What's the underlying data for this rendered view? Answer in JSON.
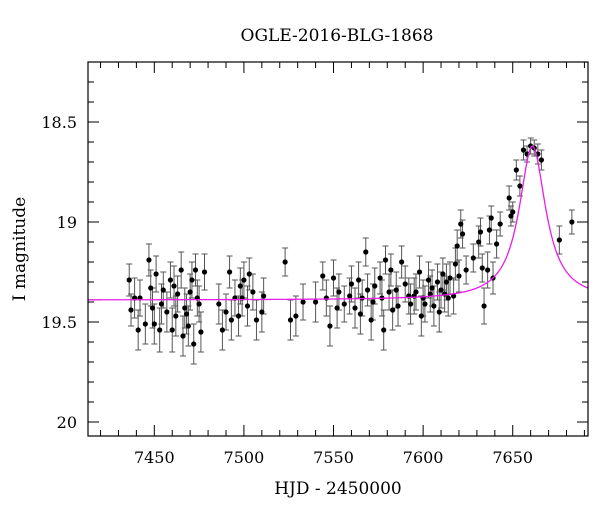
{
  "chart_data": {
    "type": "scatter",
    "title": "OGLE-2016-BLG-1868",
    "xlabel": "HJD - 2450000",
    "ylabel": "I magnitude",
    "xlim": [
      7413,
      7692
    ],
    "ylim": [
      18.2,
      20.07
    ],
    "y_inverted": true,
    "grid": false,
    "x_ticks": [
      "7450",
      "7500",
      "7550",
      "7600",
      "7650"
    ],
    "y_ticks": [
      "18.5",
      "19",
      "19.5",
      "20"
    ],
    "colors": {
      "data": "#000000",
      "error_bars": "#555555",
      "model": "#e81ee8"
    },
    "series": [
      {
        "kind": "points_with_errors",
        "points": [
          [
            7436,
            19.29,
            0.08
          ],
          [
            7437,
            19.44,
            0.08
          ],
          [
            7439,
            19.38,
            0.1
          ],
          [
            7441,
            19.54,
            0.1
          ],
          [
            7442,
            19.38,
            0.09
          ],
          [
            7445,
            19.51,
            0.1
          ],
          [
            7447,
            19.19,
            0.08
          ],
          [
            7448,
            19.33,
            0.09
          ],
          [
            7449,
            19.43,
            0.1
          ],
          [
            7450,
            19.51,
            0.1
          ],
          [
            7451,
            19.26,
            0.09
          ],
          [
            7453,
            19.54,
            0.11
          ],
          [
            7454,
            19.41,
            0.1
          ],
          [
            7455,
            19.34,
            0.09
          ],
          [
            7457,
            19.45,
            0.1
          ],
          [
            7459,
            19.29,
            0.09
          ],
          [
            7460,
            19.54,
            0.11
          ],
          [
            7461,
            19.32,
            0.1
          ],
          [
            7462,
            19.47,
            0.1
          ],
          [
            7463,
            19.36,
            0.09
          ],
          [
            7465,
            19.24,
            0.09
          ],
          [
            7466,
            19.57,
            0.1
          ],
          [
            7467,
            19.43,
            0.1
          ],
          [
            7468,
            19.46,
            0.1
          ],
          [
            7469,
            19.52,
            0.1
          ],
          [
            7470,
            19.35,
            0.09
          ],
          [
            7471,
            19.29,
            0.09
          ],
          [
            7472,
            19.61,
            0.1
          ],
          [
            7473,
            19.24,
            0.08
          ],
          [
            7474,
            19.38,
            0.09
          ],
          [
            7475,
            19.41,
            0.09
          ],
          [
            7476,
            19.55,
            0.1
          ],
          [
            7478,
            19.25,
            0.09
          ],
          [
            7486,
            19.41,
            0.1
          ],
          [
            7488,
            19.54,
            0.1
          ],
          [
            7490,
            19.45,
            0.09
          ],
          [
            7492,
            19.25,
            0.08
          ],
          [
            7493,
            19.49,
            0.1
          ],
          [
            7495,
            19.38,
            0.09
          ],
          [
            7497,
            19.47,
            0.1
          ],
          [
            7498,
            19.32,
            0.09
          ],
          [
            7499,
            19.38,
            0.09
          ],
          [
            7500,
            19.29,
            0.09
          ],
          [
            7502,
            19.42,
            0.1
          ],
          [
            7503,
            19.26,
            0.08
          ],
          [
            7505,
            19.35,
            0.09
          ],
          [
            7507,
            19.49,
            0.1
          ],
          [
            7510,
            19.45,
            0.1
          ],
          [
            7511,
            19.37,
            0.09
          ],
          [
            7523,
            19.2,
            0.07
          ],
          [
            7526,
            19.49,
            0.1
          ],
          [
            7529,
            19.47,
            0.1
          ],
          [
            7533,
            19.4,
            0.09
          ],
          [
            7540,
            19.4,
            0.1
          ],
          [
            7544,
            19.27,
            0.07
          ],
          [
            7546,
            19.38,
            0.09
          ],
          [
            7548,
            19.52,
            0.1
          ],
          [
            7550,
            19.28,
            0.09
          ],
          [
            7552,
            19.43,
            0.1
          ],
          [
            7553,
            19.35,
            0.09
          ],
          [
            7556,
            19.41,
            0.09
          ],
          [
            7559,
            19.37,
            0.09
          ],
          [
            7560,
            19.31,
            0.09
          ],
          [
            7562,
            19.43,
            0.1
          ],
          [
            7564,
            19.29,
            0.09
          ],
          [
            7565,
            19.46,
            0.1
          ],
          [
            7566,
            19.38,
            0.09
          ],
          [
            7568,
            19.15,
            0.07
          ],
          [
            7569,
            19.34,
            0.08
          ],
          [
            7571,
            19.49,
            0.1
          ],
          [
            7572,
            19.4,
            0.09
          ],
          [
            7573,
            19.32,
            0.09
          ],
          [
            7576,
            19.28,
            0.08
          ],
          [
            7577,
            19.38,
            0.09
          ],
          [
            7578,
            19.54,
            0.1
          ],
          [
            7579,
            19.19,
            0.07
          ],
          [
            7581,
            19.35,
            0.09
          ],
          [
            7582,
            19.24,
            0.08
          ],
          [
            7583,
            19.44,
            0.1
          ],
          [
            7585,
            19.34,
            0.09
          ],
          [
            7586,
            19.42,
            0.1
          ],
          [
            7588,
            19.2,
            0.08
          ],
          [
            7590,
            19.31,
            0.09
          ],
          [
            7592,
            19.37,
            0.09
          ],
          [
            7593,
            19.41,
            0.1
          ],
          [
            7595,
            19.37,
            0.09
          ],
          [
            7596,
            19.35,
            0.09
          ],
          [
            7598,
            19.25,
            0.08
          ],
          [
            7599,
            19.47,
            0.1
          ],
          [
            7600,
            19.38,
            0.09
          ],
          [
            7601,
            19.41,
            0.09
          ],
          [
            7603,
            19.29,
            0.09
          ],
          [
            7604,
            19.36,
            0.09
          ],
          [
            7605,
            19.33,
            0.09
          ],
          [
            7606,
            19.42,
            0.1
          ],
          [
            7608,
            19.3,
            0.09
          ],
          [
            7609,
            19.45,
            0.1
          ],
          [
            7610,
            19.34,
            0.09
          ],
          [
            7611,
            19.26,
            0.08
          ],
          [
            7612,
            19.36,
            0.09
          ],
          [
            7613,
            19.3,
            0.09
          ],
          [
            7614,
            19.38,
            0.09
          ],
          [
            7615,
            19.28,
            0.08
          ],
          [
            7617,
            19.37,
            0.09
          ],
          [
            7618,
            19.21,
            0.08
          ],
          [
            7619,
            19.12,
            0.08
          ],
          [
            7620,
            19.27,
            0.08
          ],
          [
            7621,
            19.01,
            0.07
          ],
          [
            7622,
            19.06,
            0.07
          ],
          [
            7624,
            19.24,
            0.07
          ],
          [
            7628,
            19.18,
            0.07
          ],
          [
            7631,
            19.1,
            0.08
          ],
          [
            7632,
            19.05,
            0.07
          ],
          [
            7633,
            19.23,
            0.07
          ],
          [
            7634,
            19.42,
            0.09
          ],
          [
            7636,
            19.24,
            0.09
          ],
          [
            7637,
            19.04,
            0.07
          ],
          [
            7638,
            18.98,
            0.06
          ],
          [
            7639,
            19.28,
            0.08
          ],
          [
            7641,
            19.11,
            0.07
          ],
          [
            7643,
            19.01,
            0.06
          ],
          [
            7648,
            18.88,
            0.06
          ],
          [
            7649,
            18.97,
            0.05
          ],
          [
            7650,
            18.95,
            0.05
          ],
          [
            7652,
            18.74,
            0.05
          ],
          [
            7654,
            18.82,
            0.05
          ],
          [
            7656,
            18.64,
            0.05
          ],
          [
            7658,
            18.66,
            0.04
          ],
          [
            7660,
            18.62,
            0.04
          ],
          [
            7662,
            18.63,
            0.04
          ],
          [
            7664,
            18.66,
            0.05
          ],
          [
            7666,
            18.69,
            0.05
          ],
          [
            7676,
            19.09,
            0.07
          ],
          [
            7683,
            19.0,
            0.06
          ]
        ]
      },
      {
        "kind": "model_curve",
        "baseline": 19.39,
        "peak_mag": 18.62,
        "t0": 7661,
        "width": 9
      }
    ]
  }
}
